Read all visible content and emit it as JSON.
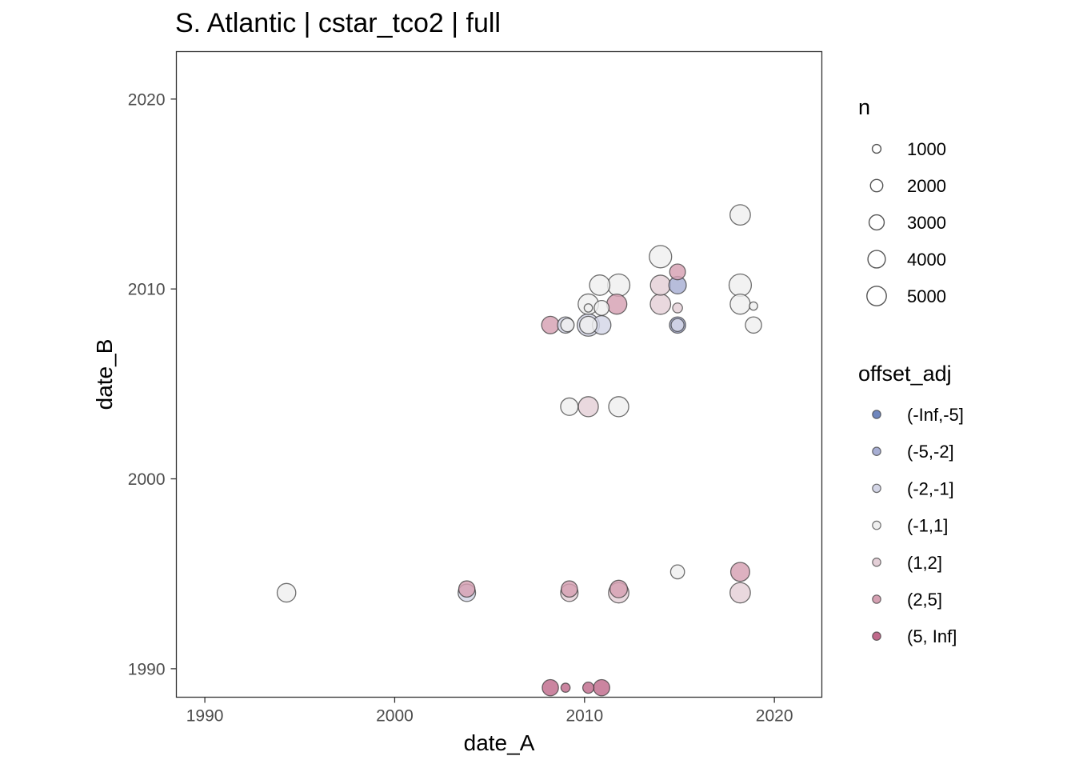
{
  "chart_data": {
    "type": "scatter",
    "title": "S. Atlantic | cstar_tco2 | full",
    "xlabel": "date_A",
    "ylabel": "date_B",
    "xlim": [
      1988.5,
      2022.5
    ],
    "ylim": [
      1988.5,
      2022.5
    ],
    "x_ticks": [
      1990,
      2000,
      2010,
      2020
    ],
    "y_ticks": [
      1990,
      2000,
      2010,
      2020
    ],
    "grid": false,
    "size_legend": {
      "title": "n",
      "position": "right",
      "breaks": [
        1000,
        2000,
        3000,
        4000,
        5000
      ]
    },
    "color_legend": {
      "title": "offset_adj",
      "position": "right",
      "categories": [
        "(-Inf,-5]",
        "(-5,-2]",
        "(-2,-1]",
        "(-1,1]",
        "(1,2]",
        "(2,5]",
        "(5, Inf]"
      ],
      "colors": [
        "#6f86bd",
        "#a7aed3",
        "#d3d5e6",
        "#efefef",
        "#e4cfd7",
        "#d5a0b2",
        "#c06a8b"
      ]
    },
    "points": [
      {
        "x": 1994.3,
        "y": 1994.0,
        "n": 2500,
        "offset_adj": "(-1,1]"
      },
      {
        "x": 2003.8,
        "y": 1994.2,
        "n": 1900,
        "offset_adj": "(2,5]"
      },
      {
        "x": 2003.8,
        "y": 1994.0,
        "n": 2200,
        "offset_adj": "(-2,-1]"
      },
      {
        "x": 2009.2,
        "y": 1994.2,
        "n": 1900,
        "offset_adj": "(2,5]"
      },
      {
        "x": 2009.2,
        "y": 1994.0,
        "n": 2200,
        "offset_adj": "(1,2]"
      },
      {
        "x": 2011.8,
        "y": 1994.2,
        "n": 2200,
        "offset_adj": "(2,5]"
      },
      {
        "x": 2011.8,
        "y": 1994.0,
        "n": 3000,
        "offset_adj": "(1,2]"
      },
      {
        "x": 2014.9,
        "y": 1995.1,
        "n": 1400,
        "offset_adj": "(-1,1]"
      },
      {
        "x": 2018.2,
        "y": 1995.1,
        "n": 2600,
        "offset_adj": "(2,5]"
      },
      {
        "x": 2018.2,
        "y": 1994.0,
        "n": 3000,
        "offset_adj": "(1,2]"
      },
      {
        "x": 2008.2,
        "y": 1989.0,
        "n": 1900,
        "offset_adj": "(5, Inf]"
      },
      {
        "x": 2009.0,
        "y": 1989.0,
        "n": 600,
        "offset_adj": "(5, Inf]"
      },
      {
        "x": 2010.2,
        "y": 1989.0,
        "n": 900,
        "offset_adj": "(5, Inf]"
      },
      {
        "x": 2010.9,
        "y": 1989.0,
        "n": 1900,
        "offset_adj": "(5, Inf]"
      },
      {
        "x": 2009.2,
        "y": 2003.8,
        "n": 2200,
        "offset_adj": "(-1,1]"
      },
      {
        "x": 2010.2,
        "y": 2003.8,
        "n": 2900,
        "offset_adj": "(1,2]"
      },
      {
        "x": 2011.8,
        "y": 2003.8,
        "n": 2900,
        "offset_adj": "(-1,1]"
      },
      {
        "x": 2008.2,
        "y": 2008.1,
        "n": 2200,
        "offset_adj": "(2,5]"
      },
      {
        "x": 2009.0,
        "y": 2008.1,
        "n": 1900,
        "offset_adj": "(-2,-1]"
      },
      {
        "x": 2009.1,
        "y": 2008.1,
        "n": 1300,
        "offset_adj": "(-1,1]"
      },
      {
        "x": 2010.2,
        "y": 2008.1,
        "n": 3600,
        "offset_adj": "(-2,-1]"
      },
      {
        "x": 2010.2,
        "y": 2008.1,
        "n": 2200,
        "offset_adj": "(-1,1]"
      },
      {
        "x": 2010.9,
        "y": 2008.1,
        "n": 2500,
        "offset_adj": "(-2,-1]"
      },
      {
        "x": 2010.2,
        "y": 2009.2,
        "n": 3000,
        "offset_adj": "(-1,1]"
      },
      {
        "x": 2010.2,
        "y": 2009.0,
        "n": 500,
        "offset_adj": "(-1,1]"
      },
      {
        "x": 2010.9,
        "y": 2009.0,
        "n": 1600,
        "offset_adj": "(-1,1]"
      },
      {
        "x": 2010.8,
        "y": 2010.2,
        "n": 3000,
        "offset_adj": "(-1,1]"
      },
      {
        "x": 2011.8,
        "y": 2010.2,
        "n": 3600,
        "offset_adj": "(-1,1]"
      },
      {
        "x": 2011.7,
        "y": 2009.2,
        "n": 2900,
        "offset_adj": "(2,5]"
      },
      {
        "x": 2014.0,
        "y": 2011.7,
        "n": 3600,
        "offset_adj": "(-1,1]"
      },
      {
        "x": 2014.9,
        "y": 2010.9,
        "n": 1800,
        "offset_adj": "(2,5]"
      },
      {
        "x": 2014.0,
        "y": 2010.2,
        "n": 2900,
        "offset_adj": "(1,2]"
      },
      {
        "x": 2014.9,
        "y": 2010.2,
        "n": 2200,
        "offset_adj": "(-5,-2]"
      },
      {
        "x": 2014.0,
        "y": 2009.2,
        "n": 3000,
        "offset_adj": "(1,2]"
      },
      {
        "x": 2014.9,
        "y": 2009.0,
        "n": 700,
        "offset_adj": "(1,2]"
      },
      {
        "x": 2014.9,
        "y": 2008.1,
        "n": 1900,
        "offset_adj": "(-5,-2]"
      },
      {
        "x": 2014.9,
        "y": 2008.1,
        "n": 1200,
        "offset_adj": "(-2,-1]"
      },
      {
        "x": 2018.2,
        "y": 2013.9,
        "n": 3000,
        "offset_adj": "(-1,1]"
      },
      {
        "x": 2018.2,
        "y": 2010.2,
        "n": 3600,
        "offset_adj": "(-1,1]"
      },
      {
        "x": 2018.2,
        "y": 2009.2,
        "n": 2900,
        "offset_adj": "(-1,1]"
      },
      {
        "x": 2018.9,
        "y": 2009.1,
        "n": 500,
        "offset_adj": "(-1,1]"
      },
      {
        "x": 2018.9,
        "y": 2008.1,
        "n": 1900,
        "offset_adj": "(-1,1]"
      }
    ]
  }
}
